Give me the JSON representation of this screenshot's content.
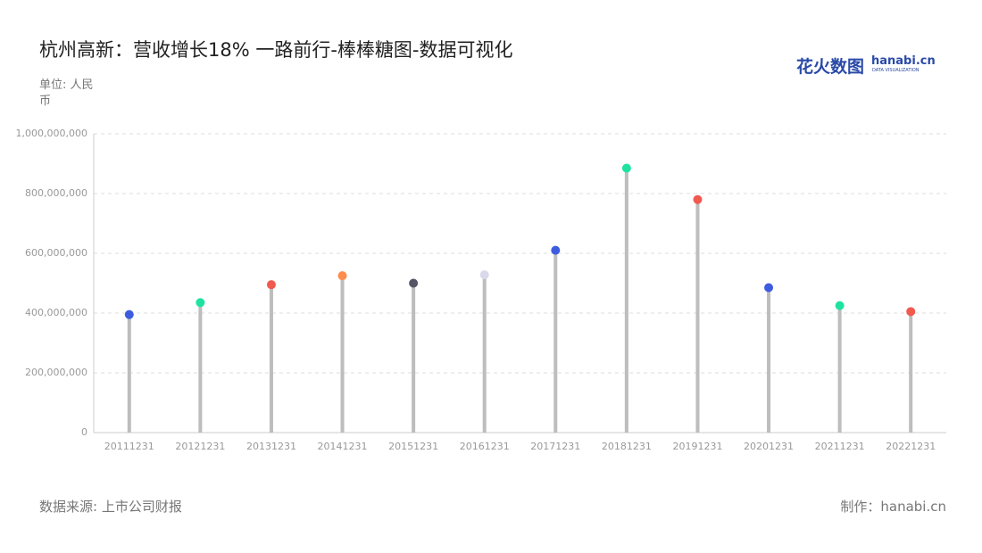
{
  "chart_data": {
    "type": "lollipop",
    "title": "杭州高新：营收增长18% 一路前行-棒棒糖图-数据可视化",
    "unit": "单位: 人民币",
    "source": "数据来源: 上市公司财报",
    "credit": "制作：hanabi.cn",
    "logo": {
      "cn": "花火数图",
      "en": "hanabi.cn",
      "sub": "DATA VISUALIZATION"
    },
    "categories": [
      "20111231",
      "20121231",
      "20131231",
      "20141231",
      "20151231",
      "20161231",
      "20171231",
      "20181231",
      "20191231",
      "20201231",
      "20211231",
      "20221231"
    ],
    "values": [
      395000000,
      435000000,
      495000000,
      525000000,
      500000000,
      528000000,
      610000000,
      885000000,
      780000000,
      485000000,
      425000000,
      405000000
    ],
    "colors": [
      "#3d5ce0",
      "#1ee3a0",
      "#f05a4f",
      "#ff8c4c",
      "#555566",
      "#d9d9ea",
      "#3d5ce0",
      "#1ee3a0",
      "#f05a4f",
      "#3d5ce0",
      "#1ee3a0",
      "#f05a4f"
    ],
    "stem_color": "#bdbdbd",
    "ylim": [
      0,
      1000000000
    ],
    "yticks": [
      0,
      {
        "value": 200000000,
        "label": "200,000,000"
      },
      {
        "value": 400000000,
        "label": "400,000,000"
      },
      {
        "value": 600000000,
        "label": "600,000,000"
      },
      {
        "value": 800000000,
        "label": "800,000,000"
      },
      {
        "value": 1000000000,
        "label": "1,000,000,000"
      }
    ],
    "grid": true
  }
}
